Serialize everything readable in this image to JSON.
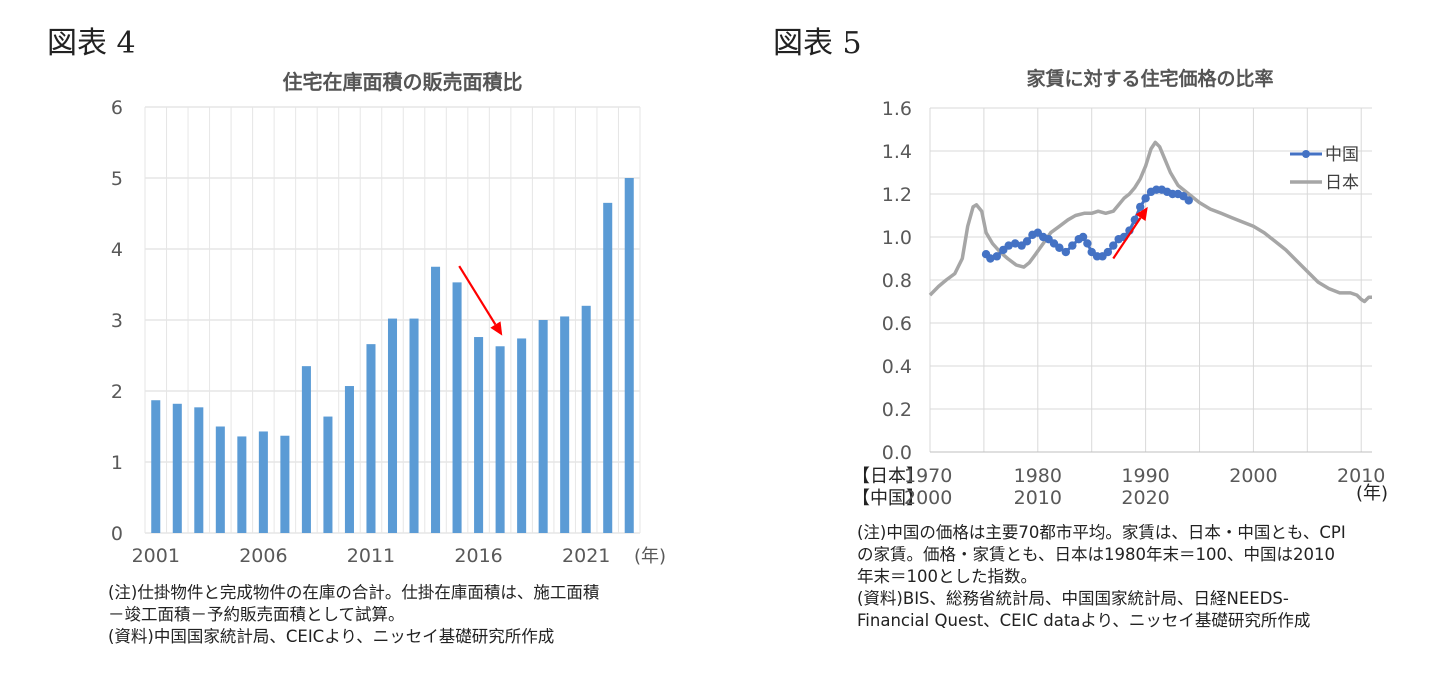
{
  "figure4": {
    "label": "図表 4",
    "notes": [
      "(注)仕掛物件と完成物件の在庫の合計。仕掛在庫面積は、施工面積",
      "－竣工面積－予約販売面積として試算。",
      "(資料)中国国家統計局、CEICより、ニッセイ基礎研究所作成"
    ]
  },
  "figure5": {
    "label": "図表 5",
    "row_labels": [
      "【日本】",
      "【中国】"
    ],
    "notes": [
      "(注)中国の価格は主要70都市平均。家賃は、日本・中国とも、CPI",
      "の家賃。価格・家賃とも、日本は1980年末＝100、中国は2010",
      "年末＝100とした指数。",
      "(資料)BIS、総務省統計局、中国国家統計局、日経NEEDS-",
      "Financial Quest、CEIC dataより、ニッセイ基礎研究所作成"
    ]
  },
  "chart_data": [
    {
      "type": "bar",
      "title": "住宅在庫面積の販売面積比",
      "x": [
        2001,
        2002,
        2003,
        2004,
        2005,
        2006,
        2007,
        2008,
        2009,
        2010,
        2011,
        2012,
        2013,
        2014,
        2015,
        2016,
        2017,
        2018,
        2019,
        2020,
        2021,
        2022,
        2023
      ],
      "values": [
        1.87,
        1.82,
        1.77,
        1.5,
        1.36,
        1.43,
        1.37,
        2.35,
        1.64,
        2.07,
        2.66,
        3.02,
        3.02,
        3.75,
        3.53,
        2.76,
        2.63,
        2.74,
        3.0,
        3.05,
        3.2,
        4.65,
        5.0
      ],
      "x_ticks": [
        "2001",
        "2006",
        "2011",
        "2016",
        "2021"
      ],
      "x_unit": "(年)",
      "ylim": [
        0,
        6
      ],
      "y_ticks": [
        "0",
        "1",
        "2",
        "3",
        "4",
        "5",
        "6"
      ],
      "grid": true,
      "bar_color": "#5b9bd5",
      "annotation": {
        "type": "arrow",
        "color": "#ff0000",
        "from": [
          2015.1,
          3.76
        ],
        "to": [
          2017.1,
          2.78
        ]
      }
    },
    {
      "type": "line",
      "title": "家賃に対する住宅価格の比率",
      "xlim": [
        1970,
        2011
      ],
      "x_ticks": [
        {
          "x": 1970,
          "japan": "1970",
          "china": "2000"
        },
        {
          "x": 1980,
          "japan": "1980",
          "china": "2010"
        },
        {
          "x": 1990,
          "japan": "1990",
          "china": "2020"
        },
        {
          "x": 2000,
          "japan": "2000",
          "china": ""
        },
        {
          "x": 2010,
          "japan": "2010",
          "china": ""
        }
      ],
      "x_unit": "(年)",
      "ylim": [
        0,
        1.6
      ],
      "y_ticks": [
        "0.0",
        "0.2",
        "0.4",
        "0.6",
        "0.8",
        "1.0",
        "1.2",
        "1.4",
        "1.6"
      ],
      "grid": true,
      "legend_position": "top-right",
      "series": [
        {
          "name": "中国",
          "color": "#4472c4",
          "markers": true,
          "points": [
            [
              1975.2,
              0.92
            ],
            [
              1975.6,
              0.9
            ],
            [
              1976.2,
              0.91
            ],
            [
              1976.8,
              0.94
            ],
            [
              1977.3,
              0.96
            ],
            [
              1977.9,
              0.97
            ],
            [
              1978.5,
              0.96
            ],
            [
              1979.0,
              0.98
            ],
            [
              1979.5,
              1.01
            ],
            [
              1980.0,
              1.02
            ],
            [
              1980.5,
              1.0
            ],
            [
              1981.0,
              0.99
            ],
            [
              1981.5,
              0.97
            ],
            [
              1982.0,
              0.95
            ],
            [
              1982.6,
              0.93
            ],
            [
              1983.2,
              0.96
            ],
            [
              1983.8,
              0.99
            ],
            [
              1984.2,
              1.0
            ],
            [
              1984.6,
              0.97
            ],
            [
              1985.0,
              0.93
            ],
            [
              1985.5,
              0.91
            ],
            [
              1986.0,
              0.91
            ],
            [
              1986.5,
              0.93
            ],
            [
              1987.0,
              0.96
            ],
            [
              1987.5,
              0.99
            ],
            [
              1988.0,
              1.0
            ],
            [
              1988.5,
              1.03
            ],
            [
              1989.0,
              1.08
            ],
            [
              1989.5,
              1.14
            ],
            [
              1990.0,
              1.18
            ],
            [
              1990.5,
              1.21
            ],
            [
              1991.0,
              1.22
            ],
            [
              1991.5,
              1.22
            ],
            [
              1992.0,
              1.21
            ],
            [
              1992.5,
              1.2
            ],
            [
              1993.0,
              1.2
            ],
            [
              1993.5,
              1.19
            ],
            [
              1994.0,
              1.17
            ]
          ]
        },
        {
          "name": "日本",
          "color": "#a6a6a6",
          "markers": false,
          "points": [
            [
              1970.0,
              0.73
            ],
            [
              1970.8,
              0.77
            ],
            [
              1971.5,
              0.8
            ],
            [
              1972.3,
              0.83
            ],
            [
              1973.0,
              0.9
            ],
            [
              1973.5,
              1.05
            ],
            [
              1974.0,
              1.14
            ],
            [
              1974.3,
              1.15
            ],
            [
              1974.8,
              1.12
            ],
            [
              1975.2,
              1.02
            ],
            [
              1975.8,
              0.97
            ],
            [
              1976.5,
              0.93
            ],
            [
              1977.2,
              0.9
            ],
            [
              1978.0,
              0.87
            ],
            [
              1978.7,
              0.86
            ],
            [
              1979.2,
              0.88
            ],
            [
              1979.8,
              0.92
            ],
            [
              1980.5,
              0.97
            ],
            [
              1981.2,
              1.02
            ],
            [
              1982.0,
              1.05
            ],
            [
              1982.8,
              1.08
            ],
            [
              1983.5,
              1.1
            ],
            [
              1984.3,
              1.11
            ],
            [
              1985.0,
              1.11
            ],
            [
              1985.6,
              1.12
            ],
            [
              1986.3,
              1.11
            ],
            [
              1987.0,
              1.12
            ],
            [
              1987.5,
              1.15
            ],
            [
              1988.0,
              1.18
            ],
            [
              1988.5,
              1.2
            ],
            [
              1989.0,
              1.23
            ],
            [
              1989.5,
              1.27
            ],
            [
              1990.0,
              1.33
            ],
            [
              1990.5,
              1.41
            ],
            [
              1990.9,
              1.44
            ],
            [
              1991.3,
              1.42
            ],
            [
              1991.8,
              1.36
            ],
            [
              1992.3,
              1.3
            ],
            [
              1993.0,
              1.24
            ],
            [
              1994.0,
              1.2
            ],
            [
              1995.0,
              1.16
            ],
            [
              1996.0,
              1.13
            ],
            [
              1997.0,
              1.11
            ],
            [
              1998.0,
              1.09
            ],
            [
              1999.0,
              1.07
            ],
            [
              2000.0,
              1.05
            ],
            [
              2001.0,
              1.02
            ],
            [
              2002.0,
              0.98
            ],
            [
              2003.0,
              0.94
            ],
            [
              2004.0,
              0.89
            ],
            [
              2005.0,
              0.84
            ],
            [
              2006.0,
              0.79
            ],
            [
              2007.0,
              0.76
            ],
            [
              2008.0,
              0.74
            ],
            [
              2009.0,
              0.74
            ],
            [
              2009.6,
              0.73
            ],
            [
              2010.0,
              0.71
            ],
            [
              2010.3,
              0.7
            ],
            [
              2010.7,
              0.72
            ],
            [
              2011.0,
              0.72
            ]
          ]
        }
      ],
      "annotation": {
        "type": "arrow",
        "color": "#ff0000",
        "from": [
          1987.0,
          0.9
        ],
        "to": [
          1990.2,
          1.14
        ]
      }
    }
  ]
}
